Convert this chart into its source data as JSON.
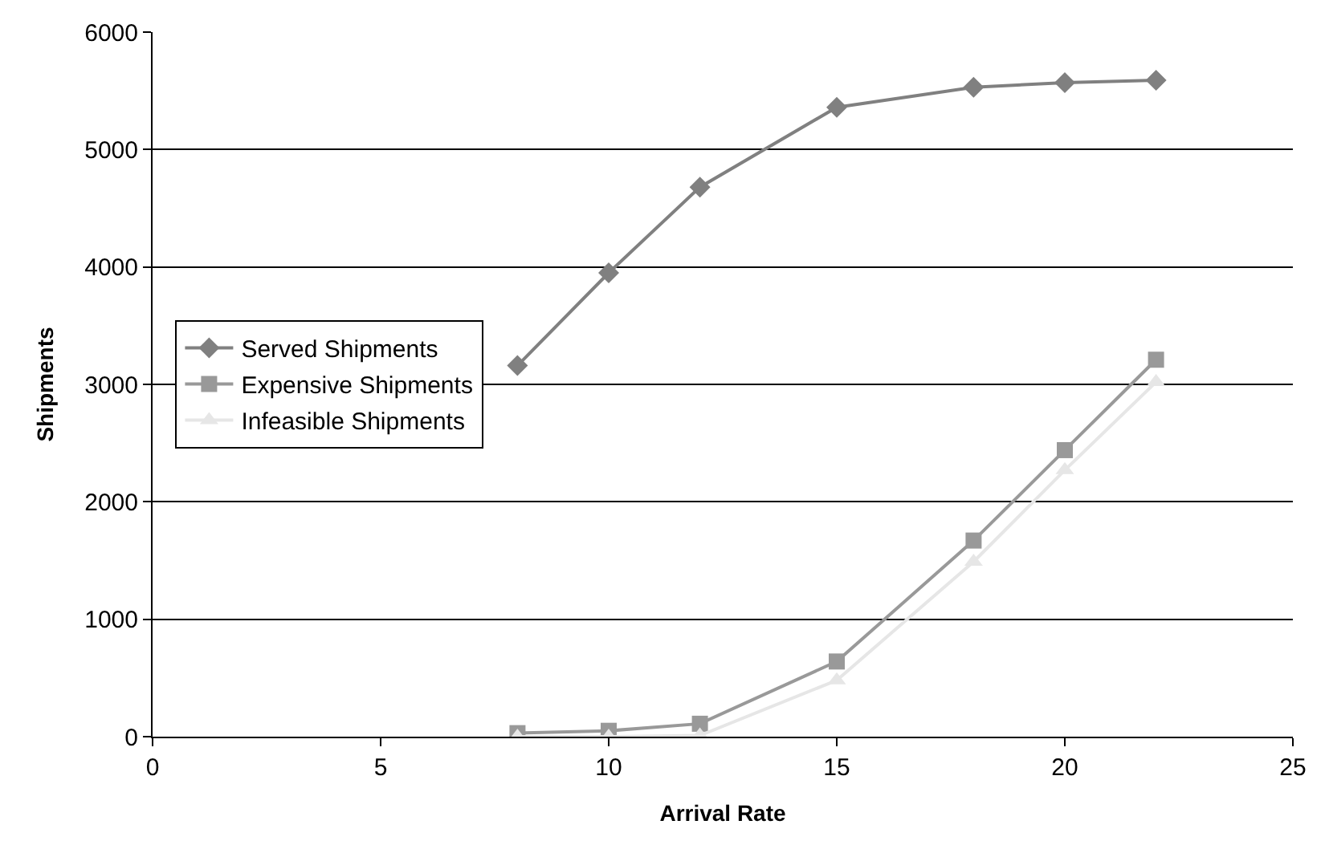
{
  "chart_data": {
    "type": "line",
    "xlabel": "Arrival Rate",
    "ylabel": "Shipments",
    "x": [
      8,
      10,
      12,
      15,
      18,
      20,
      22
    ],
    "series": [
      {
        "name": "Served Shipments",
        "color": "#808080",
        "marker": "diamond",
        "values": [
          3160,
          3950,
          4680,
          5360,
          5530,
          5570,
          5590
        ]
      },
      {
        "name": "Expensive Shipments",
        "color": "#999999",
        "marker": "square",
        "values": [
          30,
          50,
          110,
          640,
          1670,
          2440,
          3210
        ]
      },
      {
        "name": "Infeasible Shipments",
        "color": "#e6e6e6",
        "marker": "triangle",
        "values": [
          0,
          0,
          10,
          480,
          1490,
          2270,
          3020
        ]
      }
    ],
    "xlim": [
      0,
      25
    ],
    "xticks": [
      0,
      5,
      10,
      15,
      20,
      25
    ],
    "ylim": [
      0,
      6000
    ],
    "yticks": [
      0,
      1000,
      2000,
      3000,
      4000,
      5000,
      6000
    ],
    "grid": "y",
    "legend": "left",
    "line_style": "solid"
  }
}
